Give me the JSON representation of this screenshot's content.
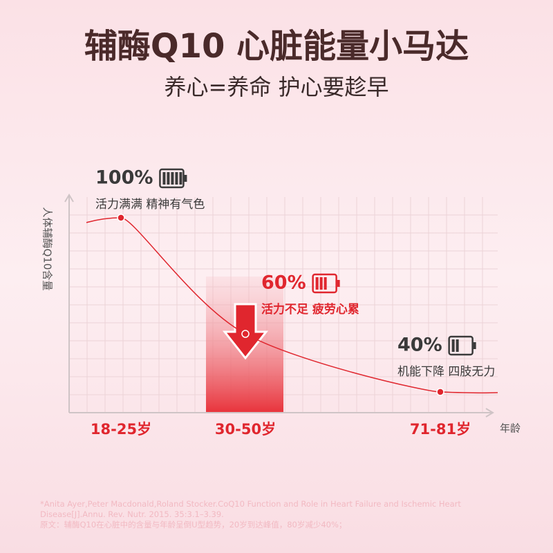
{
  "title": "辅酶Q10 心脏能量小马达",
  "subtitle": "养心=养命 护心要趁早",
  "chart_data": {
    "type": "line",
    "y_label": "人体辅酶Q10含量",
    "x_label": "年龄",
    "categories": [
      "18-25岁",
      "30-50岁",
      "71-81岁"
    ],
    "values": [
      100,
      60,
      40
    ],
    "value_labels": [
      "100%",
      "60%",
      "40%"
    ],
    "annotations": [
      "活力满满 精神有气色",
      "活力不足 疲劳心累",
      "机能下降 四肢无力"
    ],
    "label_colors": [
      "#3a3a3a",
      "#e0262e",
      "#3a3a3a"
    ],
    "color": "#e0262e"
  },
  "footnote": [
    "*Anita Ayer,Peter Macdonald,Roland Stocker.CoQ10 Function and Role in Heart Failure and Ischemic Heart Disease[J].Annu. Rev. Nutr. 2015. 35:3.1–3.39.",
    "原文：辅酶Q10在心脏中的含量与年龄呈倒U型趋势，20岁到达峰值，80岁减少40%；"
  ]
}
